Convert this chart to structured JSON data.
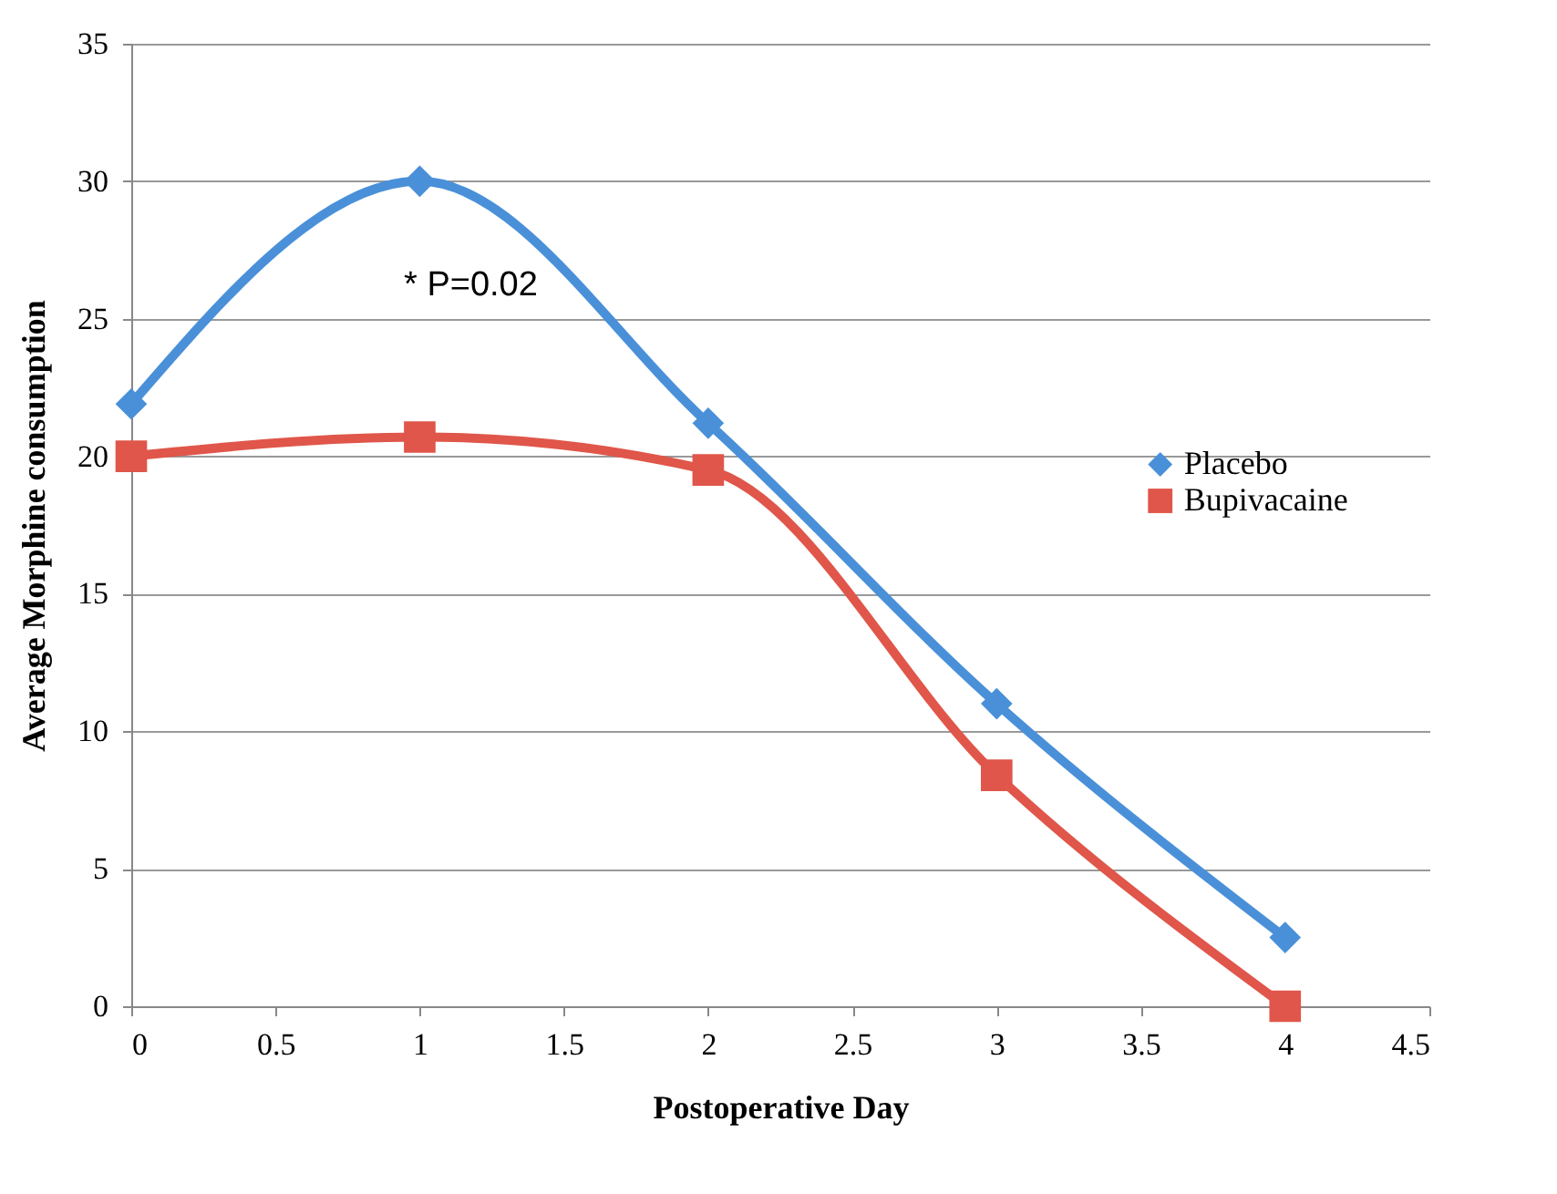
{
  "chart_data": {
    "type": "line",
    "xlabel": "Postoperative Day",
    "ylabel": "Average Morphine consumption",
    "xlim": [
      0,
      4.5
    ],
    "xticks": [
      0,
      0.5,
      1,
      1.5,
      2,
      2.5,
      3,
      3.5,
      4,
      4.5
    ],
    "ylim": [
      0,
      35
    ],
    "yticks": [
      0,
      5,
      10,
      15,
      20,
      25,
      30,
      35
    ],
    "grid": "y",
    "legend": "right",
    "series": [
      {
        "name": "Placebo",
        "color": "#4a90d9",
        "marker": "diamond",
        "x": [
          0,
          1,
          2,
          3,
          4
        ],
        "values": [
          21.9,
          30,
          21.2,
          11,
          2.5
        ]
      },
      {
        "name": "Bupivacaine",
        "color": "#e0564a",
        "marker": "square",
        "x": [
          0,
          1,
          2,
          3,
          4
        ],
        "values": [
          20,
          20.7,
          19.5,
          8.4,
          0
        ]
      }
    ],
    "annotations": [
      "* P=0.02"
    ]
  }
}
